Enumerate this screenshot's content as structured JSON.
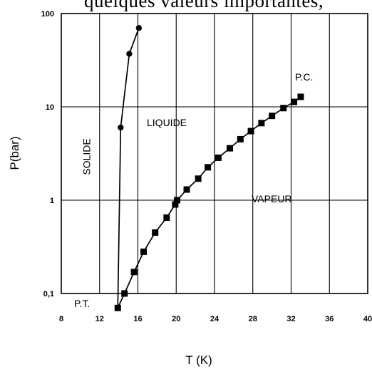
{
  "top_text": "quelques valeurs importantes,",
  "chart_data": {
    "type": "scatter",
    "title": "",
    "xlabel": "T (K)",
    "ylabel": "P(bar)",
    "xlim": [
      8,
      40
    ],
    "ylim": [
      0.05,
      100
    ],
    "yscale": "log",
    "grid": true,
    "x_ticks": [
      "8",
      "12",
      "16",
      "20",
      "24",
      "28",
      "32",
      "36",
      "40"
    ],
    "y_ticks": [
      "0,1",
      "1",
      "10",
      "100"
    ],
    "annotations": [
      "SOLIDE",
      "LIQUIDE",
      "VAPEUR",
      "P.C.",
      "P.T."
    ],
    "series": [
      {
        "marker": "circle",
        "line": "solid",
        "points": [
          [
            13.9,
            0.07
          ],
          [
            14.2,
            6
          ],
          [
            15.1,
            37
          ],
          [
            16.1,
            70
          ]
        ]
      },
      {
        "marker": "square",
        "line": "solid",
        "points": [
          [
            13.9,
            0.07
          ],
          [
            14.6,
            0.1
          ],
          [
            15.6,
            0.17
          ],
          [
            16.6,
            0.28
          ],
          [
            17.8,
            0.45
          ],
          [
            19.0,
            0.65
          ],
          [
            19.9,
            0.9
          ],
          [
            20.1,
            1.0
          ],
          [
            21.1,
            1.3
          ],
          [
            22.3,
            1.7
          ],
          [
            23.3,
            2.25
          ],
          [
            24.4,
            2.85
          ],
          [
            25.6,
            3.6
          ],
          [
            26.7,
            4.5
          ],
          [
            27.8,
            5.5
          ],
          [
            28.9,
            6.7
          ],
          [
            30.0,
            8.0
          ],
          [
            31.2,
            9.7
          ],
          [
            32.3,
            11.3
          ],
          [
            33.0,
            12.8
          ]
        ]
      }
    ]
  }
}
